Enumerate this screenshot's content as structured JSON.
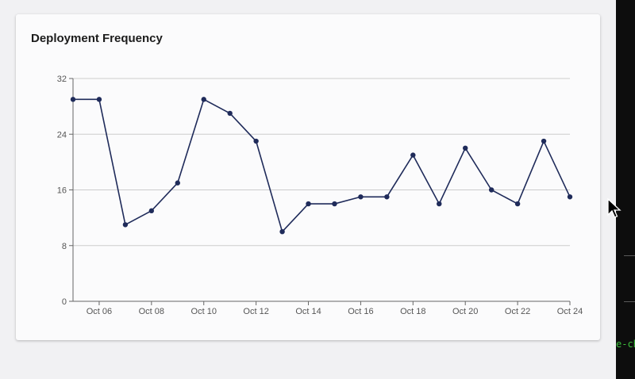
{
  "card": {
    "title": "Deployment Frequency"
  },
  "colors": {
    "line": "#1f2b5a",
    "grid": "#cccccc",
    "tick_text": "#555555",
    "terminal_text": "#3cbf3c"
  },
  "chart_data": {
    "type": "line",
    "title": "Deployment Frequency",
    "xlabel": "",
    "ylabel": "",
    "ylim": [
      0,
      32
    ],
    "y_ticks": [
      0,
      8,
      16,
      24,
      32
    ],
    "grid": true,
    "x": [
      "Oct 05",
      "Oct 06",
      "Oct 07",
      "Oct 08",
      "Oct 09",
      "Oct 10",
      "Oct 11",
      "Oct 12",
      "Oct 13",
      "Oct 14",
      "Oct 15",
      "Oct 16",
      "Oct 17",
      "Oct 18",
      "Oct 19",
      "Oct 20",
      "Oct 21",
      "Oct 22",
      "Oct 23",
      "Oct 24"
    ],
    "x_tick_labels": [
      "Oct 06",
      "Oct 08",
      "Oct 10",
      "Oct 12",
      "Oct 14",
      "Oct 16",
      "Oct 18",
      "Oct 20",
      "Oct 22",
      "Oct 24"
    ],
    "series": [
      {
        "values": [
          29,
          29,
          11,
          13,
          17,
          29,
          27,
          23,
          10,
          14,
          14,
          15,
          15,
          21,
          14,
          22,
          16,
          14,
          23,
          15
        ]
      }
    ]
  },
  "terminal_panel": {
    "text": "e-ch"
  }
}
